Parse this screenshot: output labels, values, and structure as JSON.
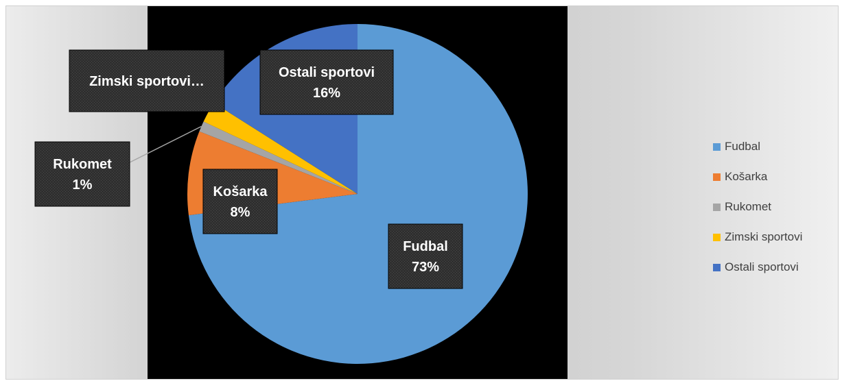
{
  "chart_data": {
    "type": "pie",
    "categories": [
      "Fudbal",
      "Košarka",
      "Rukomet",
      "Zimski sportovi",
      "Ostali sportovi"
    ],
    "values": [
      73,
      8,
      1,
      2,
      16
    ],
    "labels": [
      [
        "Fudbal",
        "73%"
      ],
      [
        "Košarka",
        "8%"
      ],
      [
        "Rukomet",
        "1%"
      ],
      [
        "Zimski sportovi…"
      ],
      [
        "Ostali sportovi",
        "16%"
      ]
    ],
    "colors": [
      "#5B9BD5",
      "#ED7D31",
      "#A5A5A5",
      "#FFC000",
      "#4472C4"
    ],
    "legend_position": "right",
    "legend": [
      "Fudbal",
      "Košarka",
      "Rukomet",
      "Zimski sportovi",
      "Ostali sportovi"
    ]
  }
}
